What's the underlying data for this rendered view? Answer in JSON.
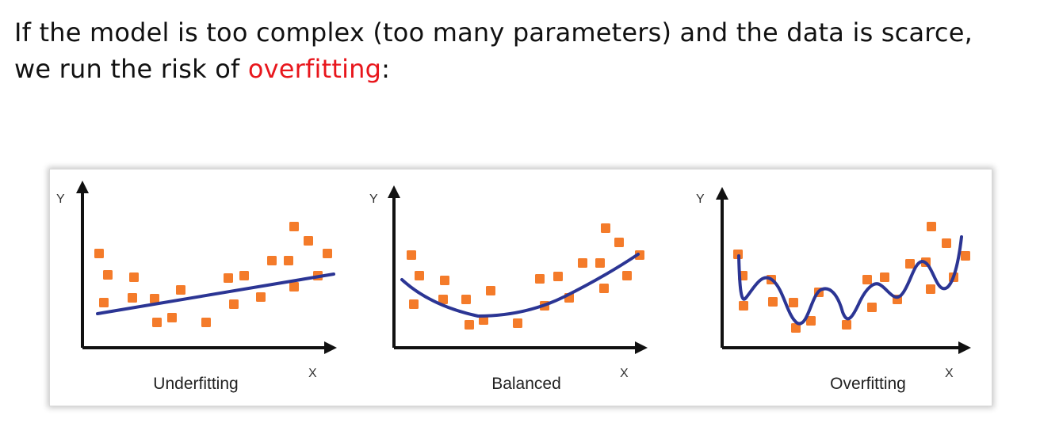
{
  "intro": {
    "line1": "If the model is too complex (too many parameters) and the data is scarce,",
    "line2_prefix": "we run the risk of ",
    "line2_highlight": "overfitting",
    "line2_suffix": ":"
  },
  "colors": {
    "point": "#f47b2a",
    "fit_line": "#2b3594",
    "axis": "#111111",
    "highlight": "#e8161c"
  },
  "panels": [
    {
      "id": "underfitting",
      "caption": "Underfitting",
      "y_label": "Y",
      "x_label": "X",
      "fit": "linear"
    },
    {
      "id": "balanced",
      "caption": "Balanced",
      "y_label": "Y",
      "x_label": "X",
      "fit": "quadratic"
    },
    {
      "id": "overfitting",
      "caption": "Overfitting",
      "y_label": "Y",
      "x_label": "X",
      "fit": "interpolating"
    }
  ]
}
